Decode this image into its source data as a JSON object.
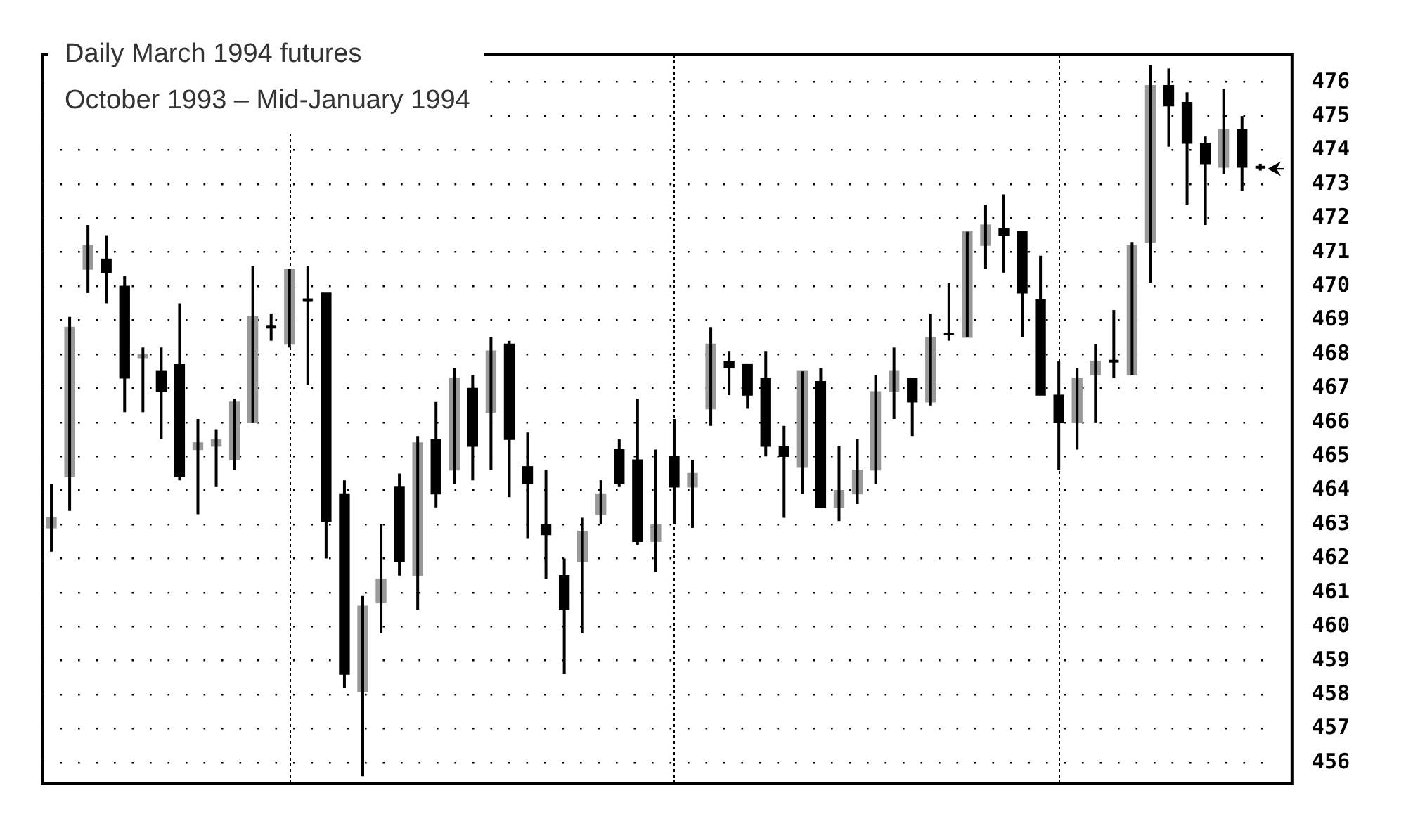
{
  "chart_data": {
    "type": "candlestick",
    "title": "Daily March 1994 futures",
    "subtitle": "October 1993 – Mid-January 1994",
    "categories": [
      null,
      null,
      null,
      null,
      null,
      null,
      null,
      null,
      null,
      null,
      null,
      null,
      null,
      null,
      null,
      null,
      null,
      null,
      null,
      null,
      null,
      null,
      null,
      null,
      null,
      null,
      null,
      null,
      null,
      null,
      null,
      null,
      null,
      null,
      null,
      null,
      null,
      null,
      null,
      null,
      null,
      null,
      null,
      null,
      null,
      null,
      null,
      null,
      null,
      null,
      null,
      null,
      null,
      null,
      null,
      null,
      null,
      null,
      null,
      null,
      null,
      null,
      null,
      null,
      null,
      null,
      null
    ],
    "ohlc": [
      [
        462.9,
        464.2,
        462.2,
        463.2
      ],
      [
        464.4,
        469.1,
        463.4,
        468.8
      ],
      [
        470.5,
        471.8,
        469.8,
        471.2
      ],
      [
        470.8,
        471.5,
        469.5,
        470.4
      ],
      [
        470.0,
        470.3,
        466.3,
        467.3
      ],
      [
        467.9,
        468.2,
        466.3,
        468.0
      ],
      [
        467.5,
        468.2,
        465.5,
        466.9
      ],
      [
        467.7,
        469.5,
        464.3,
        464.4
      ],
      [
        465.2,
        466.1,
        463.3,
        465.4
      ],
      [
        465.3,
        465.8,
        464.1,
        465.5
      ],
      [
        464.9,
        466.7,
        464.6,
        466.6
      ],
      [
        466.0,
        470.6,
        466.0,
        469.1
      ],
      [
        468.8,
        469.2,
        468.4,
        468.8
      ],
      [
        468.3,
        470.5,
        468.2,
        470.5
      ],
      [
        469.6,
        470.6,
        467.1,
        469.6
      ],
      [
        469.8,
        469.8,
        462.0,
        463.1
      ],
      [
        463.9,
        464.3,
        458.2,
        458.6
      ],
      [
        458.1,
        460.9,
        455.6,
        460.6
      ],
      [
        460.7,
        463.0,
        459.8,
        461.4
      ],
      [
        464.1,
        464.5,
        461.5,
        461.9
      ],
      [
        461.5,
        465.6,
        460.5,
        465.4
      ],
      [
        465.5,
        466.6,
        463.5,
        463.9
      ],
      [
        464.6,
        467.6,
        464.2,
        467.3
      ],
      [
        467.0,
        467.4,
        464.3,
        465.3
      ],
      [
        466.3,
        468.5,
        464.6,
        468.1
      ],
      [
        468.3,
        468.4,
        463.8,
        465.5
      ],
      [
        464.7,
        465.7,
        462.6,
        464.2
      ],
      [
        463.0,
        464.6,
        461.4,
        462.7
      ],
      [
        461.5,
        462.0,
        458.6,
        460.5
      ],
      [
        461.9,
        463.2,
        459.8,
        462.8
      ],
      [
        463.3,
        464.3,
        463.0,
        463.9
      ],
      [
        465.2,
        465.5,
        464.1,
        464.2
      ],
      [
        464.9,
        466.7,
        462.4,
        462.5
      ],
      [
        462.5,
        465.2,
        461.6,
        463.0
      ],
      [
        465.0,
        466.1,
        463.0,
        464.1
      ],
      [
        464.1,
        464.9,
        462.9,
        464.5
      ],
      [
        466.4,
        468.8,
        465.9,
        468.3
      ],
      [
        467.8,
        468.1,
        466.8,
        467.6
      ],
      [
        467.7,
        467.7,
        466.4,
        466.8
      ],
      [
        467.3,
        468.1,
        465.0,
        465.3
      ],
      [
        465.3,
        465.9,
        463.2,
        465.0
      ],
      [
        464.7,
        467.5,
        463.9,
        467.5
      ],
      [
        467.2,
        467.6,
        463.5,
        463.5
      ],
      [
        463.5,
        465.3,
        463.1,
        464.0
      ],
      [
        463.9,
        465.5,
        463.6,
        464.6
      ],
      [
        464.6,
        467.4,
        464.2,
        466.9
      ],
      [
        466.9,
        468.2,
        466.1,
        467.5
      ],
      [
        467.3,
        467.3,
        465.6,
        466.6
      ],
      [
        466.6,
        469.2,
        466.5,
        468.5
      ],
      [
        468.6,
        470.1,
        468.4,
        468.6
      ],
      [
        468.5,
        471.6,
        468.5,
        471.6
      ],
      [
        471.2,
        472.4,
        470.5,
        471.8
      ],
      [
        471.7,
        472.7,
        470.4,
        471.5
      ],
      [
        471.6,
        471.6,
        468.5,
        469.8
      ],
      [
        469.6,
        470.9,
        466.8,
        466.8
      ],
      [
        466.8,
        467.8,
        464.6,
        466.0
      ],
      [
        466.0,
        467.6,
        465.2,
        467.3
      ],
      [
        467.4,
        468.3,
        466.0,
        467.8
      ],
      [
        467.8,
        469.3,
        467.3,
        467.8
      ],
      [
        467.4,
        471.3,
        467.4,
        471.2
      ],
      [
        471.3,
        476.5,
        470.1,
        475.9
      ],
      [
        475.9,
        476.4,
        474.1,
        475.3
      ],
      [
        475.4,
        475.7,
        472.4,
        474.2
      ],
      [
        474.2,
        474.4,
        471.8,
        473.6
      ],
      [
        473.5,
        475.8,
        473.3,
        474.6
      ],
      [
        474.6,
        475.0,
        472.8,
        473.5
      ],
      [
        473.5,
        473.6,
        473.4,
        473.5
      ]
    ],
    "ylim": [
      455.4,
      476.8
    ],
    "yticks": [
      456,
      457,
      458,
      459,
      460,
      461,
      462,
      463,
      464,
      465,
      466,
      467,
      468,
      469,
      470,
      471,
      472,
      473,
      474,
      475,
      476
    ],
    "grid": true,
    "tick_labels": "y"
  }
}
